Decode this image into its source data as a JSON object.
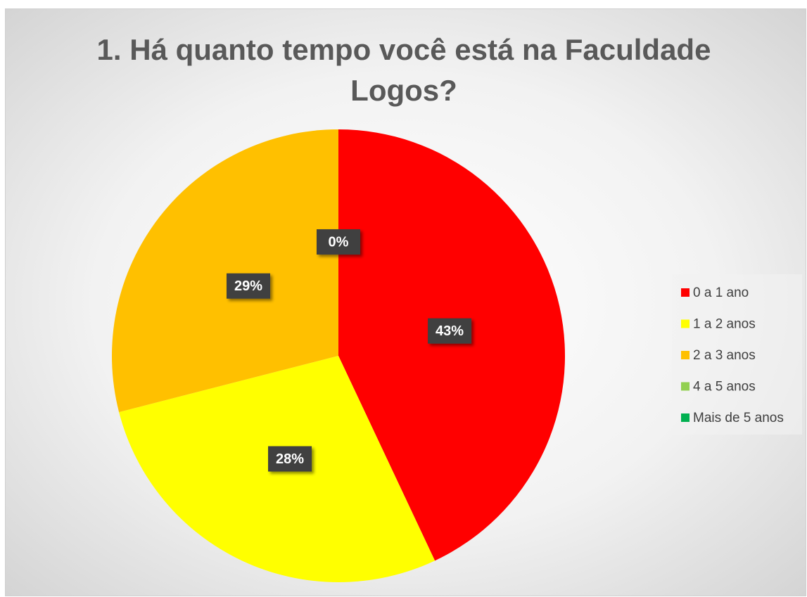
{
  "chart_data": {
    "type": "pie",
    "title": "1. Há quanto tempo você está na Faculdade Logos?",
    "categories": [
      "0 a 1 ano",
      "1 a 2 anos",
      "2 a 3 anos",
      "4 a 5 anos",
      "Mais de 5 anos"
    ],
    "values": [
      43,
      28,
      29,
      0,
      0
    ],
    "value_labels": [
      "43%",
      "28%",
      "29%",
      "0%",
      null
    ],
    "colors": [
      "#ff0000",
      "#ffff00",
      "#ffc000",
      "#92d050",
      "#00b050"
    ],
    "legend": "right"
  }
}
